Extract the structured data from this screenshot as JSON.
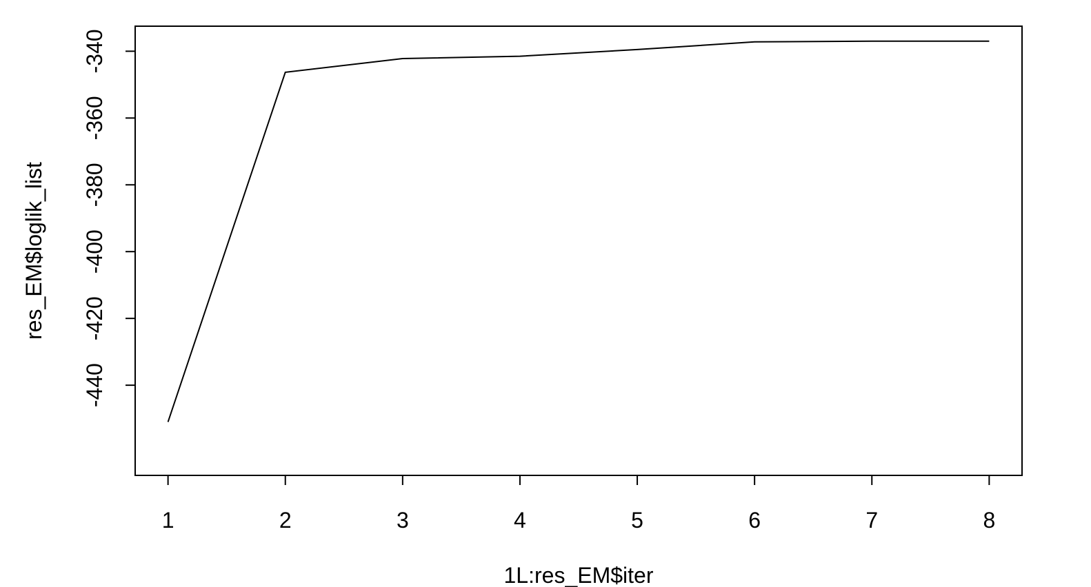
{
  "chart_data": {
    "type": "line",
    "xlabel": "1L:res_EM$iter",
    "ylabel": "res_EM$loglik_list",
    "x": [
      1,
      2,
      3,
      4,
      5,
      6,
      7,
      8
    ],
    "series": [
      {
        "values": [
          -451,
          -346.3,
          -342.2,
          -341.5,
          -339.5,
          -337.2,
          -337.0,
          -337.0
        ]
      }
    ],
    "xlim": [
      0.72,
      8.28
    ],
    "ylim": [
      -467,
      -332.5
    ],
    "xticks": [
      "1",
      "2",
      "3",
      "4",
      "5",
      "6",
      "7",
      "8"
    ],
    "yticks": [
      "-340",
      "-360",
      "-380",
      "-400",
      "-420",
      "-440"
    ],
    "grid": false,
    "line_color": "#000000"
  }
}
